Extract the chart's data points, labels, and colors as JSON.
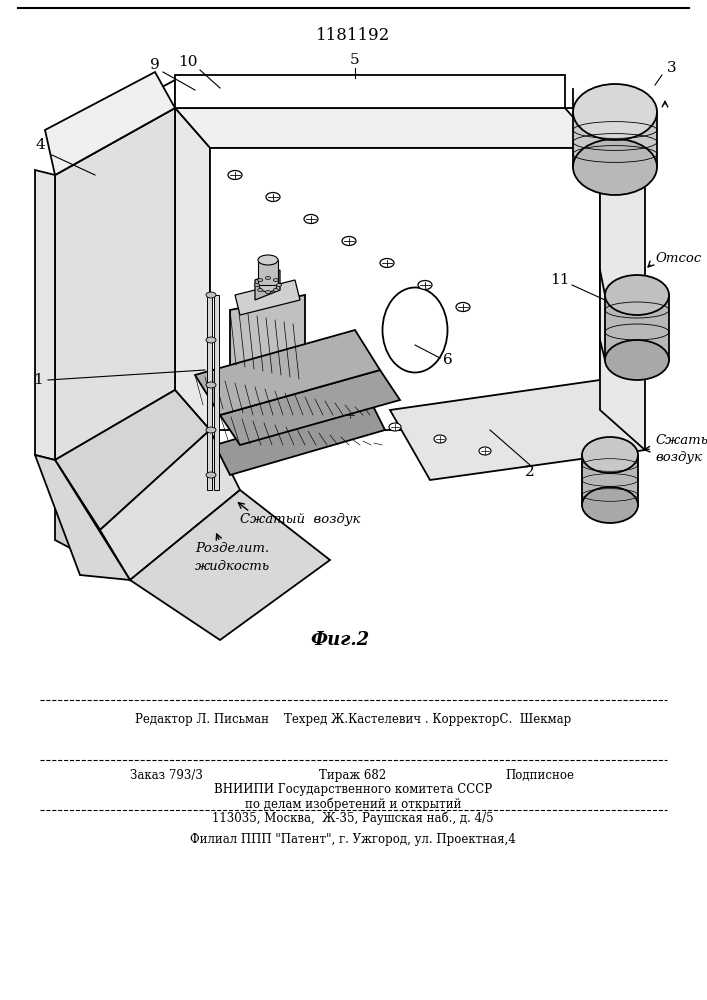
{
  "title": "1181192",
  "fig_label": "Фиг.2",
  "editor_line": "Редактор Л. Письман    Техред Ж.Кастелевич . КорректорС.  Шекмар",
  "order_line": "Заказ 793/3",
  "tirage_line": "Тираж 682",
  "podp_line": "Подписное",
  "vniipi_line1": "ВНИИПИ Государственного комитета СССР",
  "vniipi_line2": "по делам изобретений и открытий",
  "vniipi_line3": "113035, Москва,  Ж-35, Раушская наб., д. 4/5",
  "filial_line": "Филиал ППП \"Патент\", г. Ужгород, ул. Проектная,4"
}
